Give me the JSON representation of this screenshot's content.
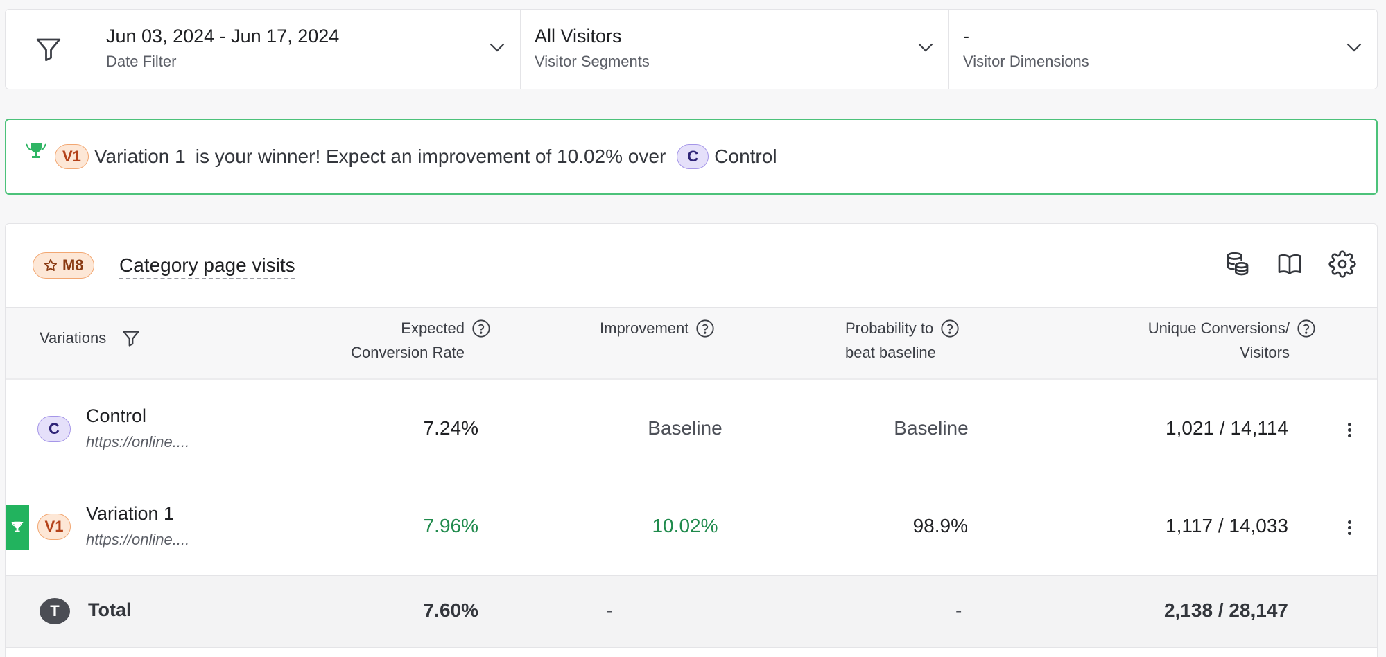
{
  "filters": {
    "date": {
      "value": "Jun 03, 2024 - Jun 17, 2024",
      "label": "Date Filter"
    },
    "segments": {
      "value": "All Visitors",
      "label": "Visitor Segments"
    },
    "dimensions": {
      "value": "-",
      "label": "Visitor Dimensions"
    }
  },
  "banner": {
    "winner_tag": "V1",
    "winner_name": "Variation 1",
    "message": "is your winner! Expect an improvement of 10.02% over",
    "baseline_tag": "C",
    "baseline_name": "Control"
  },
  "metric": {
    "tag": "M8",
    "name": "Category page visits"
  },
  "table": {
    "headers": {
      "variations": "Variations",
      "ecr_line1": "Expected",
      "ecr_line2": "Conversion Rate",
      "improvement": "Improvement",
      "prob_line1": "Probability to",
      "prob_line2": "beat baseline",
      "uc_line1": "Unique Conversions/",
      "uc_line2": "Visitors"
    },
    "rows": [
      {
        "tag": "C",
        "name": "Control",
        "url": "https://online....",
        "ecr": "7.24%",
        "improvement": "Baseline",
        "probability": "Baseline",
        "conversions": "1,021 / 14,114"
      },
      {
        "tag": "V1",
        "name": "Variation 1",
        "url": "https://online....",
        "ecr": "7.96%",
        "improvement": "10.02%",
        "probability": "98.9%",
        "conversions": "1,117 / 14,033"
      }
    ],
    "total": {
      "tag": "T",
      "name": "Total",
      "ecr": "7.60%",
      "improvement": "-",
      "probability": "-",
      "conversions": "2,138 / 28,147"
    }
  },
  "colors": {
    "winner_green": "#22b35e",
    "positive_text": "#1f8a4c",
    "banner_border": "#4cc27a",
    "variation_tag": "#fde7d6",
    "control_tag": "#e5e0fa"
  }
}
